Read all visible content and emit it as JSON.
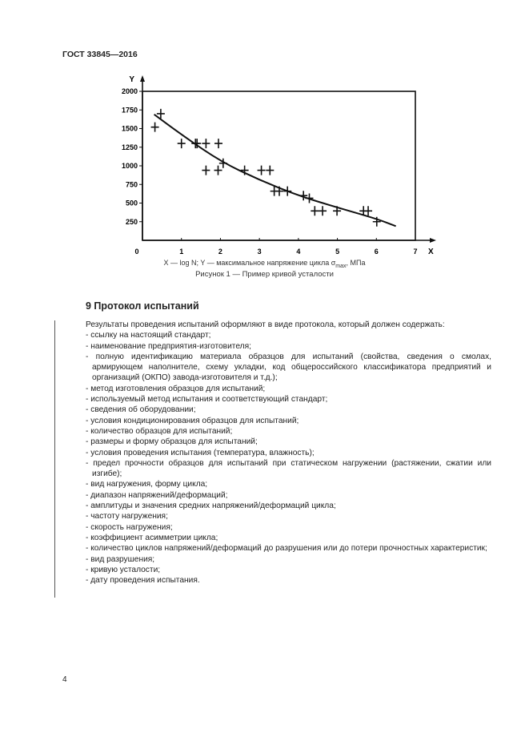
{
  "header": "ГОСТ 33845—2016",
  "chart_data": {
    "type": "scatter",
    "x_axis_label": "X",
    "y_axis_label": "Y",
    "xlim": [
      0,
      7
    ],
    "ylim": [
      0,
      2000
    ],
    "x_ticks": [
      "0",
      "1",
      "2",
      "3",
      "4",
      "5",
      "6",
      "7"
    ],
    "y_ticks": [
      "250",
      "500",
      "750",
      "1000",
      "1250",
      "1500",
      "1750",
      "2000"
    ],
    "points": [
      [
        0.32,
        1520
      ],
      [
        0.47,
        1700
      ],
      [
        1.0,
        1300
      ],
      [
        1.36,
        1300
      ],
      [
        1.4,
        1300
      ],
      [
        1.63,
        1300
      ],
      [
        1.95,
        1300
      ],
      [
        1.63,
        940
      ],
      [
        1.94,
        940
      ],
      [
        2.07,
        1035
      ],
      [
        2.62,
        940
      ],
      [
        3.05,
        940
      ],
      [
        3.27,
        940
      ],
      [
        3.38,
        660
      ],
      [
        3.51,
        660
      ],
      [
        3.72,
        660
      ],
      [
        4.13,
        600
      ],
      [
        4.28,
        565
      ],
      [
        4.42,
        395
      ],
      [
        4.62,
        395
      ],
      [
        4.99,
        395
      ],
      [
        5.67,
        395
      ],
      [
        5.79,
        395
      ],
      [
        6.01,
        250
      ]
    ],
    "trend_curve": [
      [
        0.3,
        1690
      ],
      [
        1,
        1420
      ],
      [
        2,
        1060
      ],
      [
        3,
        810
      ],
      [
        4,
        600
      ],
      [
        5,
        440
      ],
      [
        6,
        290
      ],
      [
        6.5,
        190
      ]
    ],
    "legend_text": "X — log N; Y — максимальное напряжение цикла σ",
    "legend_sub": "max",
    "legend_unit": ", МПа",
    "caption": "Рисунок 1 — Пример кривой усталости"
  },
  "section_title": "9 Протокол испытаний",
  "intro": "Результаты проведения испытаний оформляют в виде протокола, который должен содержать:",
  "items": [
    "- ссылку на настоящий стандарт;",
    "- наименование предприятия-изготовителя;",
    "- полную идентификацию материала образцов для испытаний (свойства, сведения о смолах, армирующем наполнителе, схему укладки, код общероссийского классификатора предприятий и организаций (ОКПО) завода-изготовителя и т.д.);",
    "- метод изготовления образцов для испытаний;",
    "- используемый метод испытания и соответствующий стандарт;",
    "- сведения об оборудовании;",
    "- условия кондиционирования образцов для испытаний;",
    "- количество образцов для испытаний;",
    "- размеры и форму образцов для испытаний;",
    "- условия проведения испытания (температура, влажность);",
    "- предел прочности образцов для испытаний при статическом нагружении (растяжении, сжатии или изгибе);",
    "- вид нагружения, форму цикла;",
    "- диапазон напряжений/деформаций;",
    "- амплитуды и значения средних напряжений/деформаций цикла;",
    "- частоту нагружения;",
    "- скорость нагружения;",
    "- коэффициент асимметрии цикла;",
    "- количество циклов напряжений/деформаций до разрушения или до потери прочностных харак­теристик;",
    "- вид разрушения;",
    "- кривую усталости;",
    "- дату проведения испытания."
  ],
  "page_number": "4"
}
